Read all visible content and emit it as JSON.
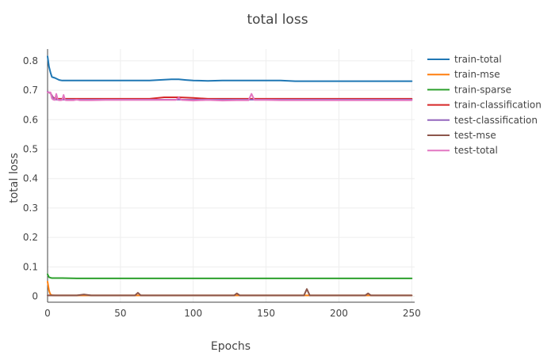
{
  "chart_data": {
    "type": "line",
    "title": "total loss",
    "xlabel": "Epochs",
    "ylabel": "total loss",
    "xlim": [
      0,
      252
    ],
    "ylim": [
      -0.02,
      0.84
    ],
    "x_ticks": [
      0,
      50,
      100,
      150,
      200,
      250
    ],
    "y_ticks": [
      0,
      0.1,
      0.2,
      0.3,
      0.4,
      0.5,
      0.6,
      0.7,
      0.8
    ],
    "grid": true,
    "legend_position": "top-right outside",
    "series": [
      {
        "name": "train-total",
        "color": "#1f77b4",
        "x": [
          0,
          1,
          2,
          3,
          5,
          8,
          10,
          15,
          20,
          30,
          40,
          50,
          60,
          70,
          80,
          85,
          90,
          95,
          100,
          110,
          120,
          130,
          140,
          150,
          160,
          170,
          180,
          190,
          200,
          210,
          220,
          230,
          240,
          250
        ],
        "y": [
          0.815,
          0.78,
          0.76,
          0.745,
          0.742,
          0.735,
          0.733,
          0.733,
          0.733,
          0.733,
          0.733,
          0.733,
          0.733,
          0.733,
          0.736,
          0.737,
          0.737,
          0.735,
          0.733,
          0.732,
          0.733,
          0.733,
          0.733,
          0.733,
          0.733,
          0.731,
          0.731,
          0.731,
          0.731,
          0.731,
          0.731,
          0.731,
          0.731,
          0.731
        ]
      },
      {
        "name": "train-mse",
        "color": "#ff7f0e",
        "x": [
          0,
          0.5,
          1,
          1.5,
          2,
          3,
          5,
          10,
          50,
          100,
          150,
          200,
          250
        ],
        "y": [
          0.05,
          0.035,
          0.02,
          0.012,
          0.006,
          0.004,
          0.003,
          0.003,
          0.003,
          0.003,
          0.003,
          0.003,
          0.003
        ]
      },
      {
        "name": "train-sparse",
        "color": "#2ca02c",
        "x": [
          0,
          1,
          2,
          3,
          5,
          10,
          20,
          50,
          100,
          150,
          200,
          250
        ],
        "y": [
          0.075,
          0.065,
          0.063,
          0.062,
          0.062,
          0.062,
          0.061,
          0.061,
          0.061,
          0.061,
          0.061,
          0.061
        ]
      },
      {
        "name": "train-classification",
        "color": "#d62728",
        "x": [
          0,
          1,
          2,
          3,
          4,
          5,
          7,
          10,
          15,
          20,
          30,
          40,
          50,
          60,
          70,
          80,
          90,
          100,
          110,
          120,
          130,
          140,
          150,
          160,
          170,
          180,
          190,
          200,
          210,
          220,
          230,
          240,
          250
        ],
        "y": [
          0.695,
          0.692,
          0.69,
          0.682,
          0.675,
          0.672,
          0.671,
          0.671,
          0.671,
          0.671,
          0.671,
          0.671,
          0.671,
          0.671,
          0.671,
          0.676,
          0.676,
          0.674,
          0.671,
          0.671,
          0.671,
          0.671,
          0.671,
          0.671,
          0.671,
          0.671,
          0.671,
          0.671,
          0.671,
          0.671,
          0.671,
          0.671,
          0.671
        ]
      },
      {
        "name": "test-classification",
        "color": "#9467bd",
        "x": [
          0,
          2,
          4,
          6,
          8,
          10,
          20,
          40,
          60,
          80,
          100,
          120,
          140,
          160,
          180,
          200,
          220,
          240,
          250
        ],
        "y": [
          0.695,
          0.69,
          0.672,
          0.668,
          0.668,
          0.668,
          0.668,
          0.668,
          0.668,
          0.668,
          0.668,
          0.668,
          0.668,
          0.668,
          0.668,
          0.668,
          0.668,
          0.668,
          0.668
        ]
      },
      {
        "name": "test-mse",
        "color": "#8c564b",
        "x": [
          0,
          5,
          10,
          20,
          25,
          30,
          50,
          60,
          62,
          64,
          66,
          80,
          100,
          120,
          128,
          130,
          132,
          150,
          170,
          176,
          178,
          180,
          190,
          200,
          218,
          220,
          222,
          240,
          250
        ],
        "y": [
          0.003,
          0.003,
          0.003,
          0.003,
          0.006,
          0.003,
          0.003,
          0.003,
          0.012,
          0.003,
          0.003,
          0.003,
          0.003,
          0.003,
          0.003,
          0.01,
          0.003,
          0.003,
          0.003,
          0.003,
          0.025,
          0.003,
          0.003,
          0.003,
          0.003,
          0.01,
          0.003,
          0.003,
          0.003
        ]
      },
      {
        "name": "test-total",
        "color": "#e377c2",
        "x": [
          0,
          2,
          3,
          4,
          5,
          6,
          7,
          8,
          9,
          10,
          11,
          12,
          13,
          14,
          16,
          18,
          20,
          22,
          25,
          30,
          40,
          50,
          60,
          70,
          80,
          88,
          90,
          92,
          100,
          110,
          120,
          130,
          138,
          140,
          142,
          150,
          160,
          170,
          180,
          190,
          200,
          210,
          220,
          230,
          240,
          250
        ],
        "y": [
          0.693,
          0.693,
          0.672,
          0.668,
          0.667,
          0.688,
          0.667,
          0.666,
          0.666,
          0.667,
          0.684,
          0.667,
          0.666,
          0.666,
          0.666,
          0.666,
          0.668,
          0.666,
          0.666,
          0.666,
          0.667,
          0.667,
          0.667,
          0.667,
          0.667,
          0.667,
          0.675,
          0.667,
          0.665,
          0.667,
          0.665,
          0.666,
          0.666,
          0.688,
          0.667,
          0.667,
          0.666,
          0.666,
          0.666,
          0.666,
          0.666,
          0.666,
          0.666,
          0.666,
          0.666,
          0.666
        ]
      }
    ]
  }
}
